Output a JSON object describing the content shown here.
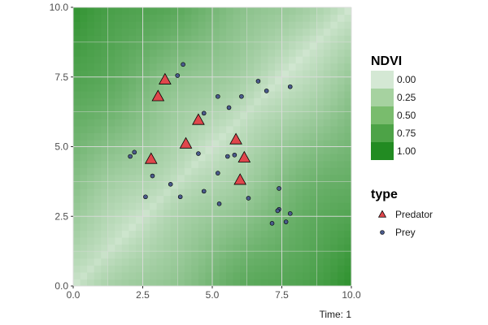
{
  "chart_data": {
    "type": "scatter",
    "xlim": [
      0,
      10
    ],
    "ylim": [
      0,
      10
    ],
    "x_ticks": [
      0,
      2.5,
      5,
      7.5,
      10
    ],
    "y_ticks": [
      0,
      2.5,
      5,
      7.5,
      10
    ],
    "x_tick_labels": [
      "0.0",
      "2.5",
      "5.0",
      "7.5",
      "10.0"
    ],
    "y_tick_labels": [
      "0.0",
      "2.5",
      "5.0",
      "7.5",
      "10.0"
    ],
    "grid": true,
    "caption": "Time: 1",
    "background": {
      "variable": "NDVI",
      "low_color": "#d4e8d4",
      "high_color": "#228b22",
      "fill_legend_title": "NDVI",
      "fill_breaks": [
        "0.00",
        "0.25",
        "0.50",
        "0.75",
        "1.00"
      ],
      "fill_colors": [
        "#d4e8d4",
        "#a6d2a0",
        "#79bc6d",
        "#4da347",
        "#228b22"
      ]
    },
    "shape_legend_title": "type",
    "series": [
      {
        "name": "Predator",
        "marker": "triangle",
        "color": "#e0474c",
        "points": [
          [
            3.3,
            7.4
          ],
          [
            3.05,
            6.8
          ],
          [
            4.5,
            5.95
          ],
          [
            4.05,
            5.1
          ],
          [
            2.8,
            4.55
          ],
          [
            5.85,
            5.25
          ],
          [
            6.15,
            4.6
          ],
          [
            6.0,
            3.8
          ]
        ]
      },
      {
        "name": "Prey",
        "marker": "circle",
        "color": "#4a5a8c",
        "points": [
          [
            3.95,
            7.95
          ],
          [
            3.75,
            7.55
          ],
          [
            5.2,
            6.8
          ],
          [
            6.05,
            6.8
          ],
          [
            6.65,
            7.35
          ],
          [
            6.95,
            7.0
          ],
          [
            7.8,
            7.15
          ],
          [
            5.6,
            6.4
          ],
          [
            4.7,
            6.2
          ],
          [
            2.2,
            4.8
          ],
          [
            2.05,
            4.65
          ],
          [
            4.5,
            4.75
          ],
          [
            5.55,
            4.65
          ],
          [
            5.8,
            4.7
          ],
          [
            2.85,
            3.95
          ],
          [
            5.2,
            4.05
          ],
          [
            3.5,
            3.65
          ],
          [
            4.7,
            3.4
          ],
          [
            2.6,
            3.2
          ],
          [
            3.85,
            3.2
          ],
          [
            6.3,
            3.15
          ],
          [
            5.25,
            2.95
          ],
          [
            7.4,
            3.5
          ],
          [
            7.4,
            2.75
          ],
          [
            7.35,
            2.7
          ],
          [
            7.8,
            2.6
          ],
          [
            7.65,
            2.3
          ],
          [
            7.15,
            2.25
          ]
        ]
      }
    ]
  }
}
